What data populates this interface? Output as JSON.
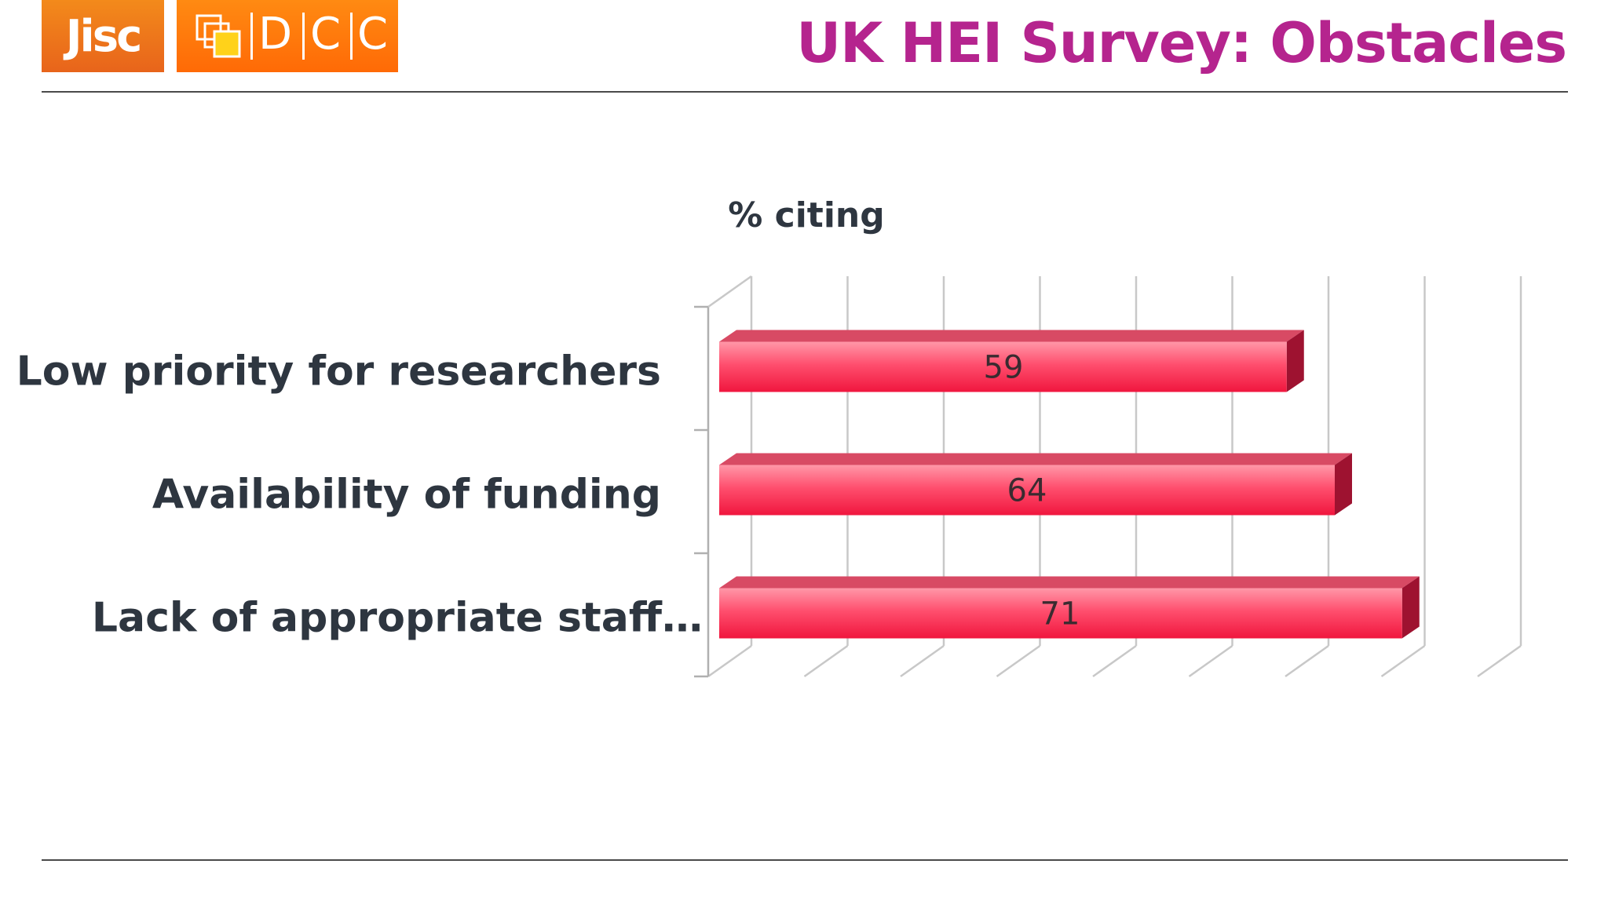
{
  "slide": {
    "title": "UK HEI Survey: Obstacles",
    "logos": {
      "jisc": "Jisc",
      "dcc_letters": [
        "D",
        "C",
        "C"
      ]
    },
    "colors": {
      "title": "#b5248e",
      "logo_orange": "#f07d1a",
      "bar": "#f0264a",
      "bar_top": "#d84a64",
      "bar_side": "#9e1230",
      "gridline": "#c8c8c8",
      "text": "#2e3640"
    }
  },
  "chart_data": {
    "type": "bar",
    "orientation": "horizontal",
    "style": "3d",
    "title": "% citing",
    "categories": [
      "Low priority for researchers",
      "Availability of funding",
      "Lack of appropriate staff…"
    ],
    "values": [
      59,
      64,
      71
    ],
    "xlim": [
      0,
      80
    ],
    "grid": true,
    "legend": "none"
  }
}
